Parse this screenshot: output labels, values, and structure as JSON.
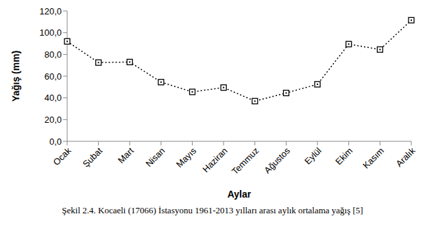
{
  "chart_data": {
    "type": "line",
    "title": "Şekil 2.4. Kocaeli (17066) İstasyonu 1961-2013 yılları arası aylık ortalama yağış [5]",
    "x_label": "Aylar",
    "y_label": "Yağış (mm)",
    "categories": [
      "Ocak",
      "Şubat",
      "Mart",
      "Nisan",
      "Mayıs",
      "Haziran",
      "Temmuz",
      "Ağustos",
      "Eylül",
      "Ekim",
      "Kasım",
      "Aralık"
    ],
    "values": [
      92.0,
      72.5,
      73.0,
      54.5,
      45.5,
      49.5,
      37.0,
      44.5,
      52.5,
      89.5,
      84.5,
      111.5
    ],
    "color": "#000000",
    "marker": "square",
    "line_style": "dotted",
    "grid": false,
    "ylim": [
      0,
      120
    ],
    "yticks": [
      {
        "value": 0,
        "label": "0,0"
      },
      {
        "value": 20,
        "label": "20,0"
      },
      {
        "value": 40,
        "label": "40,0"
      },
      {
        "value": 60,
        "label": "60,0"
      },
      {
        "value": 80,
        "label": "80,0"
      },
      {
        "value": 100,
        "label": "100,0"
      },
      {
        "value": 120,
        "label": "120,0"
      }
    ]
  }
}
